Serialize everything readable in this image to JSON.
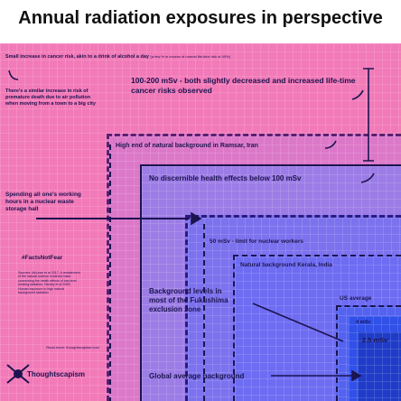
{
  "title": "Annual radiation exposures in perspective",
  "banner": {
    "text": "Small increase in cancer risk, akin to a drink of alcohol a day",
    "note": "(a few % in excess of normal life-time risk of 40%)"
  },
  "labels": {
    "air_pollution": "There's a similar increase in risk of premature death due to air pollution when moving from a town to a big city",
    "range_100_200": "100-200 mSv - both slightly decreased and increased life-time cancer risks observed",
    "ramsar": "High end of natural background in Ramsar, Iran",
    "no_effects": "No discernible health effects below 100 mSv",
    "waste_hall": "Spending all one's working hours in a nuclear waste storage hall",
    "hashtag": "#FactsNotFear",
    "sources": "Sources: McLean et al 2017, A restatement of the natural science evidence base concerning the health effects of low-level ionizing radiation, Hendry et al 2009, Human exposure to high natural background radiation",
    "read_more": "Read more: thoughtscapism.com",
    "brand": "Thoughtscapism",
    "workers": "50 mSv - limit for nuclear workers",
    "kerala": "Natural background Kerala, India",
    "fukushima": "Background levels in most of the Fukushima exclusion zone",
    "us_average": "US average",
    "four": "4 mSv",
    "two_five": "2.5 mSv",
    "global": "Global average background"
  }
}
